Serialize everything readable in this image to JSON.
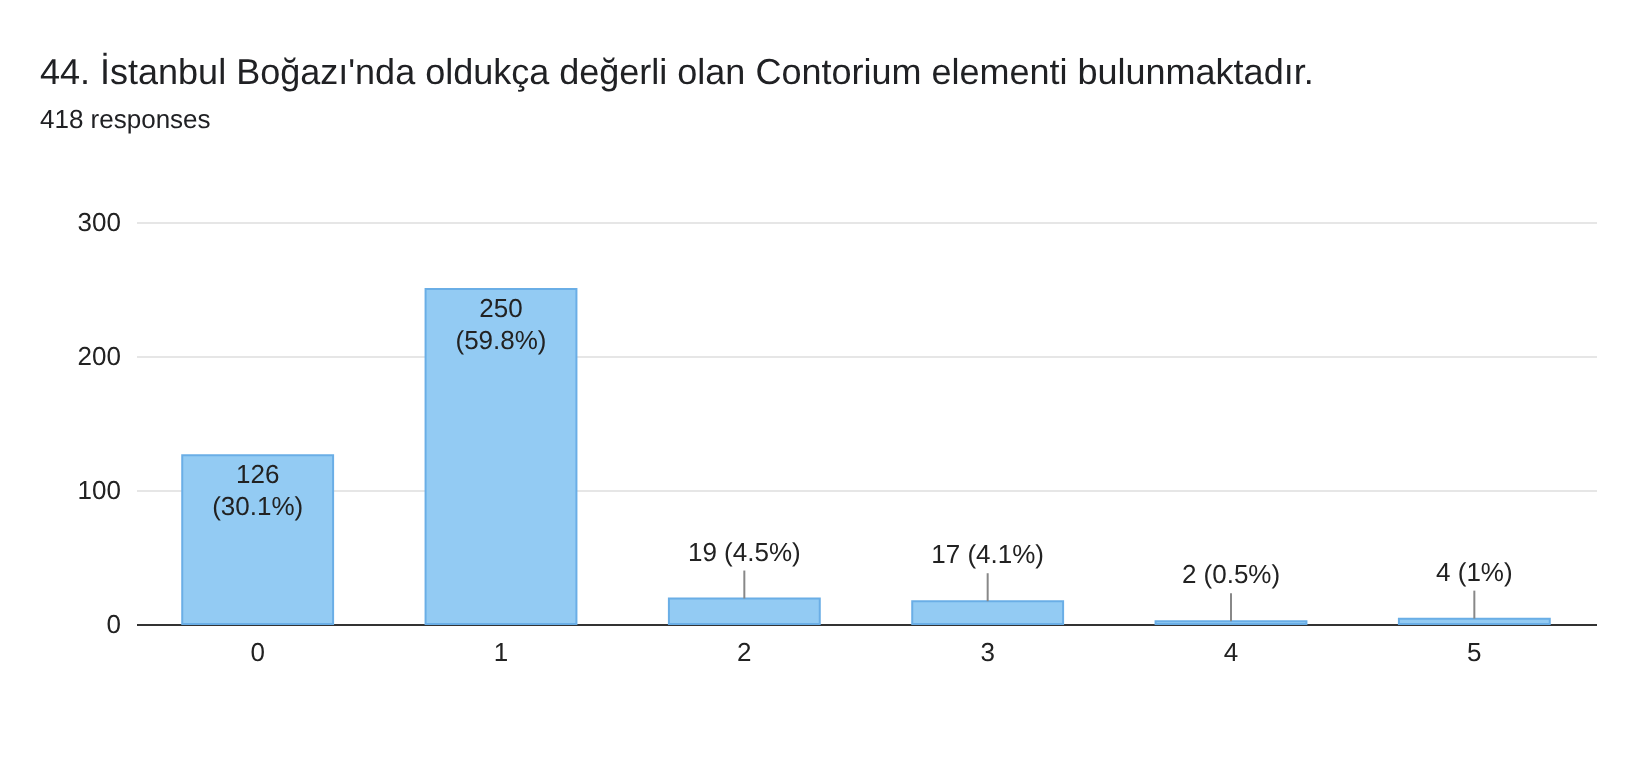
{
  "chart_data": {
    "type": "bar",
    "title": "44. İstanbul Boğazı'nda oldukça değerli olan Contorium elementi bulunmaktadır.",
    "subtitle": "418 responses",
    "categories": [
      "0",
      "1",
      "2",
      "3",
      "4",
      "5"
    ],
    "values": [
      126,
      250,
      19,
      17,
      2,
      4
    ],
    "value_labels": [
      "126 (30.1%)",
      "250 (59.8%)",
      "19 (4.5%)",
      "17 (4.1%)",
      "2 (0.5%)",
      "4 (1%)"
    ],
    "color": "#93cbf3",
    "ylim": [
      0,
      300
    ],
    "yticks": [
      0,
      100,
      200,
      300
    ],
    "grid": "y"
  }
}
